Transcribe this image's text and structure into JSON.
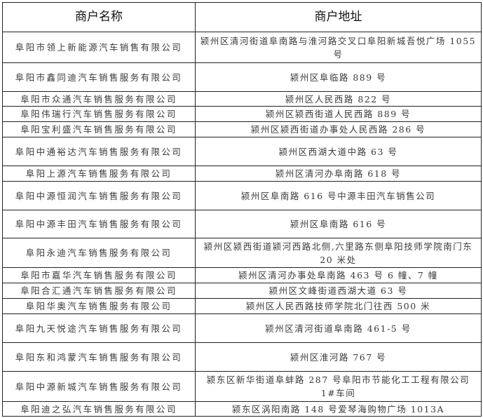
{
  "header": {
    "name": "商户名称",
    "address": "商户地址"
  },
  "rows": [
    {
      "name": "阜阳市领上新能源汽车销售有限公司",
      "address": "颍州区清河街道阜南路与淮河路交叉口阜阳新城吾悦广场 1055 号"
    },
    {
      "name": "阜阳市鑫同迪汽车销售服务有限公司",
      "address": "颍州区阜临路 889 号"
    },
    {
      "name": "阜阳市众通汽车销售服务有限公司",
      "address": "颍州区人民西路 822 号"
    },
    {
      "name": "阜阳伟瑞行汽车销售服务有限公司",
      "address": "颍州区颍西街道人民西路 889 号"
    },
    {
      "name": "阜阳宝利盛汽车销售服务有限公司",
      "address": "颍州区颍西街道办事处人民西路 286 号"
    },
    {
      "name": "阜阳中通裕达汽车销售服务有限公司",
      "address": "颍州区西湖大道中路 63 号"
    },
    {
      "name": "阜阳上源汽车销售服务有限公司",
      "address": "颍州区清河办阜南路 618 号"
    },
    {
      "name": "阜阳中源恒润汽车销售服务有限公司",
      "address": "颍州区阜南路 616 号中源丰田汽车销售公司"
    },
    {
      "name": "阜阳中源丰田汽车销售服务有限公司",
      "address": "颍州区阜南路 616 号"
    },
    {
      "name": "阜阳永迪汽车销售服务有限公司",
      "address": "颍州区颍西街道颍河西路北侧,六里路东侧阜阳技师学院南门东 20 米处"
    },
    {
      "name": "阜阳市嘉华汽车销售服务有限公司",
      "address": "颍州区清河办事处阜南路 463 号 6 幢、7 幢"
    },
    {
      "name": "阜阳合汇通汽车销售服务有限公司",
      "address": "颍州区文峰街道西湖大道 63 号"
    },
    {
      "name": "阜阳华奥汽车销售服务有限公司",
      "address": "颍州区人民西路技师学院北门往西 500 米"
    },
    {
      "name": "阜阳九天悦途汽车销售服务有限公司",
      "address": "颍州区清河街道阜南路 461-5 号"
    },
    {
      "name": "阜阳东和鸿蒙汽车销售服务有限公司",
      "address": "颍州区淮河路 767 号"
    },
    {
      "name": "阜阳中源新城汽车销售服务有限公司",
      "address": "颍东区新华街道阜蚌路 287 号阜阳市节能化工工程有限公司 1#车间"
    },
    {
      "name": "阜阳迪之弘汽车销售服务有限公司",
      "address": "颍东区涡阳南路 148 号爱琴海购物广场 1013A"
    }
  ]
}
